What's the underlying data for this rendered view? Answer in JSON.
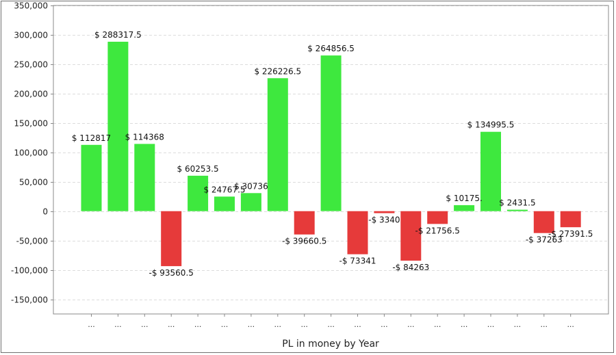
{
  "chart_data": {
    "type": "bar",
    "title": "",
    "xlabel": "PL in money by Year",
    "ylabel": "",
    "ylim": [
      -175000,
      350000
    ],
    "yticks": [
      -150000,
      -100000,
      -50000,
      0,
      50000,
      100000,
      150000,
      200000,
      250000,
      300000,
      350000
    ],
    "ytick_labels": [
      "-150,000",
      "-100,000",
      "-50,000",
      "0",
      "50,000",
      "100,000",
      "150,000",
      "200,000",
      "250,000",
      "300,000",
      "350,000"
    ],
    "grid": true,
    "legend": "none",
    "categories": [
      "...",
      "...",
      "...",
      "...",
      "...",
      "...",
      "...",
      "...",
      "...",
      "...",
      "...",
      "...",
      "...",
      "...",
      "...",
      "...",
      "...",
      "...",
      "..."
    ],
    "values": [
      112817,
      288317.5,
      114368,
      -93560.5,
      60253.5,
      24767.5,
      30736,
      226226.5,
      -39660.5,
      264856.5,
      -73341,
      -3340,
      -84263,
      -21756.5,
      10175,
      134995.5,
      2431.5,
      -37263,
      -27391.5
    ],
    "data_labels": [
      "$ 112817",
      "$ 288317.5",
      "$ 114368",
      "-$ 93560.5",
      "$ 60253.5",
      "$ 24767.5",
      "$ 30736",
      "$ 226226.5",
      "-$ 39660.5",
      "$ 264856.5",
      "-$ 73341",
      "-$ 3340",
      "-$ 84263",
      "-$ 21756.5",
      "$ 10175.",
      "$ 134995.5",
      "$ 2431.5",
      "-$ 37263",
      "-$ 27391.5"
    ],
    "colors": {
      "positive": "#3ee83e",
      "negative": "#e63a3a",
      "grid": "#dcdcdc",
      "axis": "#888888"
    }
  }
}
